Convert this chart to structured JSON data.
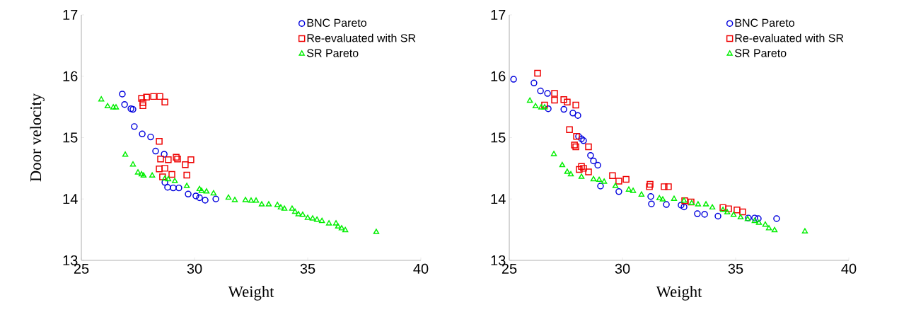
{
  "chart_data": [
    {
      "type": "scatter",
      "xlabel": "Weight",
      "ylabel": "Door velocity",
      "xlim": [
        25,
        40
      ],
      "ylim": [
        13,
        17
      ],
      "xticks": [
        25,
        30,
        35,
        40
      ],
      "yticks": [
        13,
        14,
        15,
        16,
        17
      ],
      "legend": "top right",
      "series": [
        {
          "name": "BNC Pareto",
          "color": "#0000dd",
          "marker": "circle",
          "x": [
            26.81,
            26.91,
            27.19,
            27.28,
            27.34,
            27.69,
            28.06,
            28.28,
            28.66,
            28.69,
            28.81,
            29.06,
            29.31,
            29.72,
            30.06,
            30.22,
            30.47,
            30.94
          ],
          "values": [
            15.71,
            15.54,
            15.47,
            15.46,
            15.18,
            15.06,
            15.01,
            14.78,
            14.73,
            14.27,
            14.19,
            14.18,
            14.18,
            14.08,
            14.05,
            14.02,
            13.98,
            14.0
          ]
        },
        {
          "name": "Re-evaluated with SR",
          "color": "#ee0000",
          "marker": "square",
          "x": [
            27.66,
            27.72,
            27.72,
            27.88,
            28.19,
            28.47,
            28.69,
            28.44,
            28.5,
            28.84,
            29.19,
            29.25,
            29.84,
            29.59,
            28.44,
            28.69,
            29.0,
            29.66,
            28.59
          ],
          "values": [
            15.64,
            15.57,
            15.52,
            15.66,
            15.67,
            15.67,
            15.58,
            14.94,
            14.65,
            14.64,
            14.68,
            14.65,
            14.64,
            14.56,
            14.49,
            14.5,
            14.4,
            14.39,
            14.36
          ]
        },
        {
          "name": "SR Pareto",
          "color": "#00ee00",
          "marker": "triangle",
          "x": [
            25.88,
            26.16,
            26.41,
            26.53,
            26.94,
            27.28,
            27.5,
            27.66,
            27.75,
            28.13,
            28.69,
            28.84,
            29.13,
            29.66,
            30.22,
            30.31,
            30.53,
            30.84,
            31.5,
            31.78,
            32.25,
            32.5,
            32.72,
            32.97,
            33.28,
            33.66,
            33.81,
            33.97,
            34.31,
            34.44,
            34.59,
            34.78,
            35.0,
            35.22,
            35.41,
            35.63,
            35.94,
            36.25,
            36.34,
            36.5,
            36.66,
            38.03
          ],
          "values": [
            15.62,
            15.51,
            15.49,
            15.49,
            14.72,
            14.56,
            14.43,
            14.4,
            14.38,
            14.38,
            14.33,
            14.32,
            14.29,
            14.21,
            14.16,
            14.13,
            14.12,
            14.09,
            14.02,
            13.98,
            13.98,
            13.97,
            13.97,
            13.91,
            13.91,
            13.9,
            13.86,
            13.84,
            13.84,
            13.79,
            13.75,
            13.74,
            13.69,
            13.68,
            13.66,
            13.64,
            13.6,
            13.6,
            13.55,
            13.52,
            13.49,
            13.46
          ]
        }
      ]
    },
    {
      "type": "scatter",
      "xlabel": "Weight",
      "xlim": [
        25,
        40
      ],
      "ylim": [
        13,
        17
      ],
      "xticks": [
        25,
        30,
        35,
        40
      ],
      "yticks": [
        13,
        14,
        15,
        16,
        17
      ],
      "legend": "top right",
      "series": [
        {
          "name": "BNC Pareto",
          "color": "#0000dd",
          "marker": "circle",
          "x": [
            25.19,
            26.09,
            26.38,
            26.69,
            26.72,
            27.41,
            27.81,
            28.03,
            28.06,
            28.19,
            28.28,
            28.59,
            28.72,
            28.91,
            29.03,
            29.84,
            31.25,
            31.28,
            31.94,
            32.59,
            32.72,
            33.31,
            33.63,
            34.22,
            35.56,
            35.84,
            36.0,
            36.81
          ],
          "values": [
            15.95,
            15.89,
            15.76,
            15.72,
            15.47,
            15.46,
            15.4,
            15.36,
            15.02,
            14.98,
            14.95,
            14.71,
            14.62,
            14.55,
            14.21,
            14.12,
            14.04,
            13.92,
            13.91,
            13.9,
            13.87,
            13.76,
            13.75,
            13.72,
            13.69,
            13.69,
            13.68,
            13.68
          ]
        },
        {
          "name": "Re-evaluated with SR",
          "color": "#ee0000",
          "marker": "square",
          "x": [
            26.25,
            27.0,
            27.0,
            27.41,
            27.56,
            27.94,
            26.56,
            27.66,
            27.97,
            27.88,
            27.94,
            28.5,
            28.19,
            28.09,
            28.28,
            28.5,
            29.56,
            29.84,
            30.16,
            31.22,
            31.19,
            31.84,
            32.03,
            32.75,
            33.03,
            34.44,
            34.69,
            35.06,
            35.31
          ],
          "values": [
            16.05,
            15.72,
            15.61,
            15.62,
            15.58,
            15.53,
            15.53,
            15.13,
            15.02,
            14.88,
            14.85,
            14.85,
            14.53,
            14.48,
            14.5,
            14.44,
            14.38,
            14.29,
            14.32,
            14.24,
            14.2,
            14.2,
            14.2,
            13.97,
            13.95,
            13.86,
            13.84,
            13.82,
            13.79
          ]
        },
        {
          "name": "SR Pareto",
          "color": "#00ee00",
          "marker": "triangle",
          "x": [
            25.91,
            26.16,
            26.41,
            26.56,
            26.97,
            27.34,
            27.56,
            27.72,
            28.19,
            28.72,
            28.97,
            29.19,
            29.69,
            30.28,
            30.47,
            30.84,
            31.63,
            31.78,
            32.28,
            32.72,
            33.06,
            33.34,
            33.69,
            33.97,
            34.44,
            34.63,
            34.91,
            35.22,
            35.53,
            35.84,
            36.03,
            36.31,
            36.47,
            36.72,
            38.06
          ],
          "values": [
            15.6,
            15.51,
            15.49,
            15.49,
            14.73,
            14.55,
            14.44,
            14.4,
            14.36,
            14.32,
            14.31,
            14.28,
            14.21,
            14.15,
            14.13,
            14.07,
            14.01,
            13.99,
            14.0,
            13.97,
            13.93,
            13.91,
            13.91,
            13.86,
            13.82,
            13.78,
            13.74,
            13.7,
            13.67,
            13.64,
            13.61,
            13.58,
            13.52,
            13.49,
            13.47
          ]
        }
      ]
    }
  ]
}
